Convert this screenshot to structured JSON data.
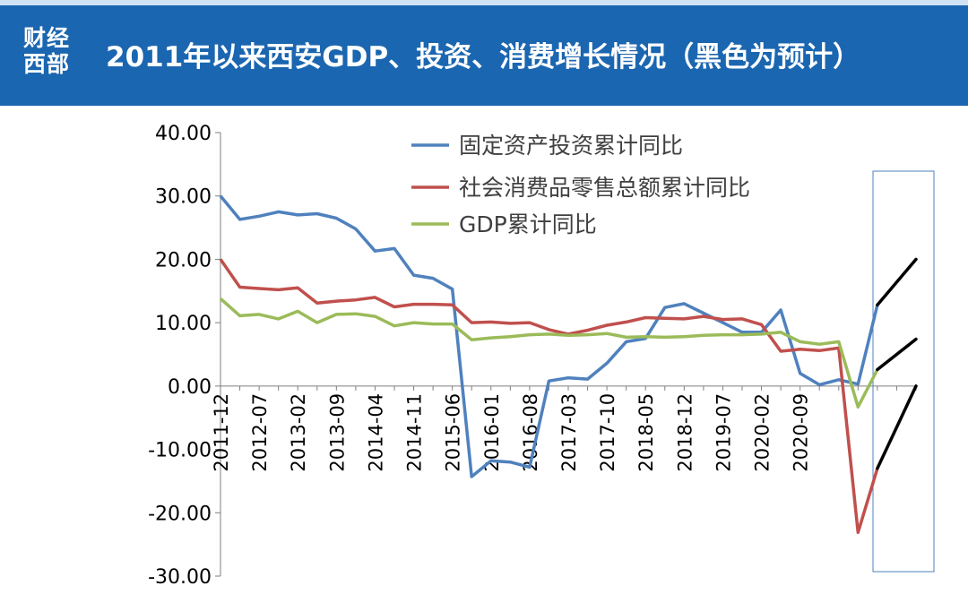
{
  "header": {
    "logo_line1": "财经",
    "logo_line2": "西部",
    "title": "2011年以来西安GDP、投资、消费增长情况（黑色为预计）"
  },
  "chart_data": {
    "type": "line",
    "ylim": [
      -30,
      40
    ],
    "yticks": [
      "40.00",
      "30.00",
      "20.00",
      "10.00",
      "0.00",
      "-10.00",
      "-20.00",
      "-30.00"
    ],
    "xticks": [
      "2011-12",
      "2012-07",
      "2013-02",
      "2013-09",
      "2014-04",
      "2014-11",
      "2015-06",
      "2016-01",
      "2016-08",
      "2017-03",
      "2017-10",
      "2018-05",
      "2018-12",
      "2019-07",
      "2020-02",
      "2020-09"
    ],
    "n_points": 37,
    "series": [
      {
        "name": "固定资产投资累计同比",
        "color": "#4f81bd",
        "values": [
          30.0,
          26.3,
          26.8,
          27.5,
          27.0,
          27.2,
          26.5,
          24.8,
          21.3,
          21.7,
          17.5,
          17.0,
          15.3,
          -14.3,
          -11.8,
          -12.0,
          -12.8,
          0.8,
          1.3,
          1.1,
          3.6,
          7.0,
          7.5,
          12.4,
          13.0,
          11.5,
          10.0,
          8.5,
          8.5,
          12.0,
          2.0,
          0.2,
          1.0,
          0.3,
          12.8
        ]
      },
      {
        "name": "社会消费品零售总额累计同比",
        "color": "#c0504d",
        "values": [
          20.0,
          15.6,
          15.4,
          15.2,
          15.5,
          13.1,
          13.4,
          13.6,
          14.0,
          12.5,
          12.9,
          12.9,
          12.8,
          10.0,
          10.1,
          9.9,
          10.0,
          8.9,
          8.2,
          8.8,
          9.6,
          10.1,
          10.8,
          10.7,
          10.6,
          11.0,
          10.5,
          10.6,
          9.7,
          5.5,
          5.8,
          5.6,
          6.0,
          -23.1,
          -13.0
        ]
      },
      {
        "name": "GDP累计同比",
        "color": "#9bbb59",
        "values": [
          13.8,
          11.1,
          11.3,
          10.6,
          11.8,
          10.0,
          11.3,
          11.4,
          11.0,
          9.5,
          10.0,
          9.8,
          9.8,
          7.3,
          7.6,
          7.8,
          8.1,
          8.2,
          8.0,
          8.1,
          8.3,
          7.7,
          7.8,
          7.7,
          7.8,
          8.0,
          8.1,
          8.1,
          8.2,
          8.5,
          7.0,
          6.6,
          7.0,
          -3.3,
          2.6
        ]
      }
    ],
    "forecast": {
      "color": "#000000",
      "segments": [
        {
          "x": [
            34,
            36
          ],
          "values": [
            12.8,
            20.0
          ]
        },
        {
          "x": [
            34,
            36
          ],
          "values": [
            2.6,
            7.4
          ]
        },
        {
          "x": [
            34,
            36
          ],
          "values": [
            -13.0,
            0.0
          ]
        }
      ]
    }
  }
}
